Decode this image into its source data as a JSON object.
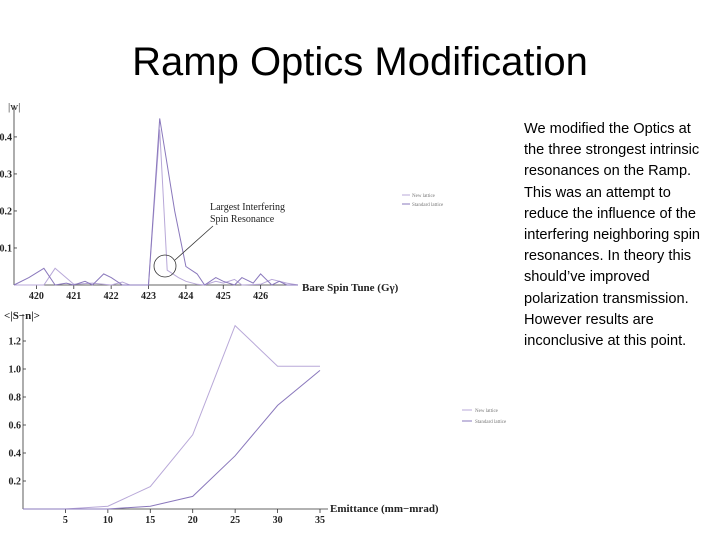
{
  "slide": {
    "title": "Ramp Optics Modification",
    "body": "We modified the Optics at the three strongest intrinsic resonances on the Ramp. This was an attempt to reduce the influence of the interfering neighboring spin resonances. In theory this should’ve improved polarization transmission. However results are inconclusive at this point."
  },
  "colors": {
    "new_lattice": "#b8a8d8",
    "standard_lattice": "#8a78bc",
    "axis": "#333333"
  },
  "chart_data": [
    {
      "type": "line",
      "ylabel": "|w|",
      "xlabel": "Bare Spin Tune (Gγ)",
      "xlim": [
        419.4,
        427.0
      ],
      "ylim": [
        0,
        0.47
      ],
      "x_ticks": [
        420,
        421,
        422,
        423,
        424,
        425,
        426
      ],
      "y_ticks": [
        0.1,
        0.2,
        0.3,
        0.4
      ],
      "y_tick_labels": [
        "0.1",
        "0.2",
        "0.3",
        "0.4"
      ],
      "legend": {
        "position": "right",
        "entries": [
          "New lattice",
          "Standard lattice"
        ]
      },
      "annotation": {
        "text_lines": [
          "Largest Interfering",
          "Spin Resonance"
        ],
        "target": [
          423.5,
          0.03
        ]
      },
      "series": [
        {
          "name": "New lattice",
          "x": [
            419.4,
            420.2,
            420.5,
            421.0,
            421.5,
            422.0,
            422.3,
            422.5,
            422.8,
            423.0,
            423.3,
            423.5,
            423.8,
            424.0,
            424.3,
            424.5,
            424.8,
            425.0,
            425.3,
            425.5,
            426.0,
            426.3,
            426.7,
            427.0
          ],
          "y": [
            0.0,
            0.0,
            0.045,
            0.002,
            0.005,
            0.0,
            0.008,
            0.0,
            0.0,
            0.0,
            0.42,
            0.04,
            0.02,
            0.01,
            0.002,
            0.0,
            0.01,
            0.005,
            0.015,
            0.0,
            0.002,
            0.015,
            0.005,
            0.0
          ]
        },
        {
          "name": "Standard lattice",
          "x": [
            419.4,
            419.8,
            420.2,
            420.5,
            420.8,
            421.0,
            421.3,
            421.5,
            421.8,
            422.0,
            422.3,
            422.5,
            422.8,
            423.0,
            423.3,
            423.7,
            424.0,
            424.3,
            424.5,
            424.8,
            425.0,
            425.3,
            425.5,
            425.8,
            426.0,
            426.3,
            426.5,
            426.7,
            427.0
          ],
          "y": [
            0.0,
            0.02,
            0.045,
            0.0,
            0.005,
            0.0,
            0.01,
            0.0,
            0.03,
            0.02,
            0.0,
            0.0,
            0.0,
            0.0,
            0.45,
            0.2,
            0.05,
            0.03,
            0.0,
            0.02,
            0.01,
            0.0,
            0.02,
            0.005,
            0.03,
            0.0,
            0.01,
            0.0,
            0.0
          ]
        }
      ]
    },
    {
      "type": "line",
      "ylabel": "<|S−n|>",
      "xlabel": "Emittance (mm−mrad)",
      "xlim": [
        0,
        35
      ],
      "ylim": [
        0,
        1.35
      ],
      "x_ticks": [
        5,
        10,
        15,
        20,
        25,
        30,
        35
      ],
      "y_ticks": [
        0.2,
        0.4,
        0.6,
        0.8,
        1.0,
        1.2
      ],
      "y_tick_labels": [
        "0.2",
        "0.4",
        "0.6",
        "0.8",
        "1.0",
        "1.2"
      ],
      "legend": {
        "position": "right",
        "entries": [
          "New lattice",
          "Standard lattice"
        ]
      },
      "series": [
        {
          "name": "New lattice",
          "x": [
            0,
            5,
            10,
            15,
            20,
            25,
            30,
            35
          ],
          "y": [
            0.0,
            0.0,
            0.02,
            0.16,
            0.53,
            1.31,
            1.02,
            1.02
          ]
        },
        {
          "name": "Standard lattice",
          "x": [
            0,
            5,
            10,
            15,
            20,
            25,
            30,
            35
          ],
          "y": [
            0.0,
            0.0,
            0.0,
            0.02,
            0.09,
            0.38,
            0.74,
            0.99
          ]
        }
      ]
    }
  ]
}
